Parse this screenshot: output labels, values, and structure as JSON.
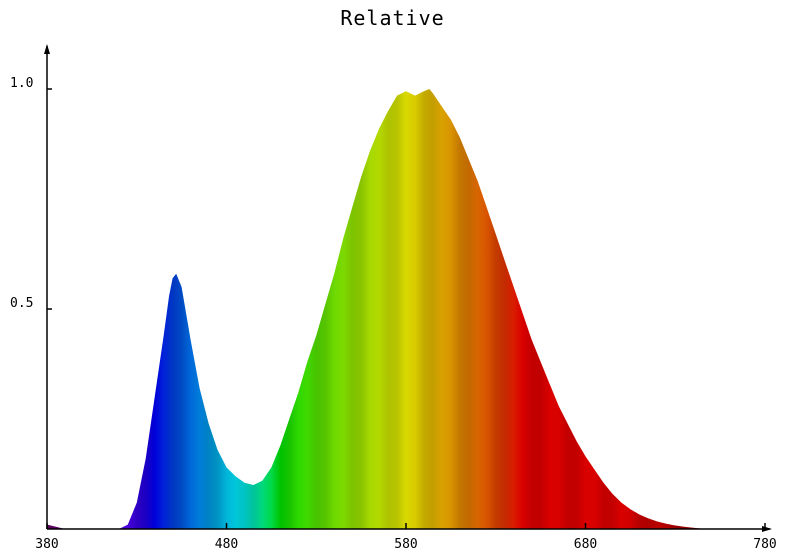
{
  "chart_data": {
    "type": "area",
    "title": "Relative",
    "xlabel": "",
    "ylabel": "",
    "xlim": [
      380,
      780
    ],
    "ylim": [
      0,
      1.0
    ],
    "x_ticks": [
      "380",
      "480",
      "580",
      "680",
      "780"
    ],
    "y_ticks": [
      "0.5",
      "1.0"
    ],
    "x_tick_values": [
      380,
      480,
      580,
      680,
      780
    ],
    "y_tick_values": [
      0.5,
      1.0
    ],
    "grid": false,
    "fill": "spectral wavelength colors",
    "series": [
      {
        "x": [
          380,
          385,
          390,
          400,
          410,
          420,
          425,
          430,
          435,
          440,
          445,
          448,
          450,
          452,
          455,
          460,
          465,
          470,
          475,
          480,
          485,
          490,
          495,
          500,
          505,
          510,
          515,
          520,
          525,
          530,
          535,
          540,
          545,
          550,
          555,
          560,
          565,
          570,
          575,
          580,
          585,
          590,
          593,
          595,
          600,
          605,
          610,
          615,
          620,
          625,
          630,
          635,
          640,
          645,
          650,
          655,
          660,
          665,
          670,
          675,
          680,
          685,
          690,
          695,
          700,
          705,
          710,
          715,
          720,
          725,
          730,
          735,
          740,
          745,
          750,
          760,
          770,
          780
        ],
        "values": [
          0.01,
          0.005,
          0.0,
          0.0,
          0.0,
          0.0,
          0.01,
          0.06,
          0.16,
          0.3,
          0.44,
          0.53,
          0.57,
          0.58,
          0.55,
          0.43,
          0.32,
          0.24,
          0.18,
          0.14,
          0.12,
          0.105,
          0.1,
          0.11,
          0.14,
          0.19,
          0.25,
          0.31,
          0.38,
          0.44,
          0.51,
          0.58,
          0.66,
          0.73,
          0.8,
          0.86,
          0.91,
          0.95,
          0.985,
          0.995,
          0.985,
          0.995,
          1.0,
          0.99,
          0.96,
          0.93,
          0.89,
          0.84,
          0.79,
          0.73,
          0.67,
          0.61,
          0.55,
          0.49,
          0.43,
          0.38,
          0.33,
          0.28,
          0.24,
          0.2,
          0.165,
          0.135,
          0.105,
          0.08,
          0.06,
          0.045,
          0.033,
          0.024,
          0.017,
          0.012,
          0.008,
          0.005,
          0.003,
          0.001,
          0.0,
          0.0,
          0.0,
          0.0
        ]
      }
    ]
  }
}
